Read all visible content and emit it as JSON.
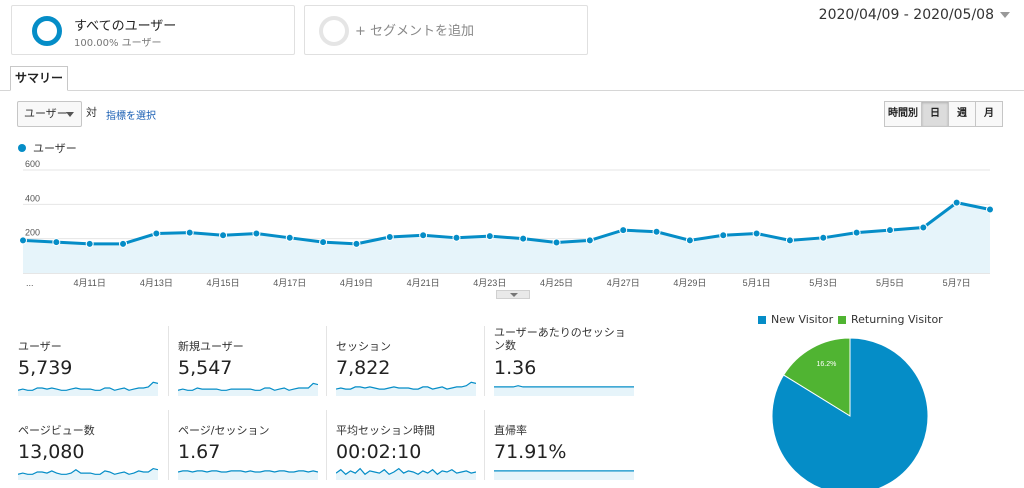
{
  "segments": {
    "active": {
      "title": "すべてのユーザー",
      "subtitle": "100.00% ユーザー",
      "color": "#058dc7"
    },
    "add_label": "+ セグメントを追加"
  },
  "date_range": "2020/04/09 - 2020/05/08",
  "tabs": {
    "summary": "サマリー"
  },
  "controls": {
    "metric_select": "ユーザー",
    "vs_label": "対",
    "choose_metric": "指標を選択",
    "granularity": [
      "時間別",
      "日",
      "週",
      "月"
    ],
    "granularity_active": "日"
  },
  "legend": {
    "series_label": "ユーザー",
    "color": "#058dc7"
  },
  "chart_data": {
    "type": "area",
    "series": [
      {
        "name": "ユーザー",
        "color": "#058dc7",
        "values": [
          190,
          180,
          170,
          170,
          230,
          235,
          220,
          230,
          205,
          180,
          170,
          210,
          220,
          205,
          215,
          200,
          178,
          190,
          250,
          240,
          190,
          220,
          230,
          190,
          205,
          235,
          250,
          265,
          410,
          370
        ]
      }
    ],
    "x_tick_labels": [
      "...",
      "4月11日",
      "4月13日",
      "4月15日",
      "4月17日",
      "4月19日",
      "4月21日",
      "4月23日",
      "4月25日",
      "4月27日",
      "4月29日",
      "5月1日",
      "5月3日",
      "5月5日",
      "5月7日"
    ],
    "y_tick_labels": [
      "600",
      "400",
      "200"
    ],
    "ylim": [
      0,
      600
    ],
    "grid": true
  },
  "scorecards": [
    {
      "label": "ユーザー",
      "value": "5,739",
      "spark": [
        5,
        6,
        5,
        5,
        7,
        7,
        6,
        7,
        6,
        5,
        5,
        6,
        7,
        6,
        6,
        6,
        5,
        5,
        7,
        7,
        5,
        6,
        7,
        5,
        6,
        7,
        7,
        8,
        12,
        11
      ]
    },
    {
      "label": "新規ユーザー",
      "value": "5,547",
      "spark": [
        5,
        6,
        5,
        5,
        7,
        6,
        6,
        6,
        6,
        5,
        5,
        6,
        6,
        6,
        6,
        6,
        5,
        5,
        7,
        7,
        5,
        6,
        7,
        5,
        6,
        7,
        7,
        7,
        11,
        10
      ]
    },
    {
      "label": "セッション",
      "value": "7,822",
      "spark": [
        6,
        7,
        6,
        6,
        8,
        8,
        7,
        8,
        7,
        6,
        6,
        7,
        8,
        7,
        7,
        7,
        6,
        6,
        8,
        8,
        6,
        7,
        8,
        6,
        7,
        8,
        8,
        9,
        12,
        11
      ]
    },
    {
      "label": "ユーザーあたりのセッション数",
      "value": "1.36",
      "spark": [
        8,
        8,
        8,
        8,
        8,
        9,
        8,
        8,
        8,
        8,
        8,
        8,
        8,
        8,
        8,
        8,
        8,
        8,
        8,
        8,
        8,
        8,
        8,
        8,
        8,
        8,
        8,
        8,
        8,
        8
      ]
    },
    {
      "label": "ページビュー数",
      "value": "13,080",
      "spark": [
        5,
        6,
        5,
        5,
        7,
        7,
        6,
        8,
        6,
        5,
        5,
        6,
        9,
        6,
        6,
        6,
        5,
        5,
        8,
        7,
        5,
        6,
        7,
        5,
        6,
        8,
        7,
        7,
        10,
        9
      ]
    },
    {
      "label": "ページ/セッション",
      "value": "1.67",
      "spark": [
        7,
        8,
        8,
        7,
        8,
        8,
        7,
        8,
        8,
        7,
        7,
        8,
        8,
        8,
        7,
        8,
        7,
        7,
        8,
        8,
        7,
        8,
        8,
        7,
        7,
        8,
        8,
        7,
        8,
        7
      ]
    },
    {
      "label": "平均セッション時間",
      "value": "00:02:10",
      "spark": [
        6,
        9,
        5,
        8,
        6,
        10,
        5,
        8,
        7,
        6,
        9,
        5,
        7,
        10,
        6,
        8,
        7,
        5,
        8,
        6,
        9,
        5,
        8,
        7,
        9,
        6,
        7,
        8,
        6,
        7
      ]
    },
    {
      "label": "直帰率",
      "value": "71.91%",
      "spark": [
        8,
        8,
        8,
        8,
        8,
        8,
        8,
        8,
        8,
        8,
        8,
        8,
        8,
        8,
        8,
        8,
        8,
        8,
        8,
        8,
        8,
        8,
        8,
        8,
        8,
        8,
        8,
        8,
        8,
        8
      ]
    }
  ],
  "pie": {
    "legend": [
      {
        "label": "New Visitor",
        "color": "#058dc7"
      },
      {
        "label": "Returning Visitor",
        "color": "#50b432"
      }
    ],
    "slices": [
      {
        "label": "83.8%",
        "value": 83.8,
        "color": "#058dc7"
      },
      {
        "label": "16.2%",
        "value": 16.2,
        "color": "#50b432"
      }
    ]
  }
}
